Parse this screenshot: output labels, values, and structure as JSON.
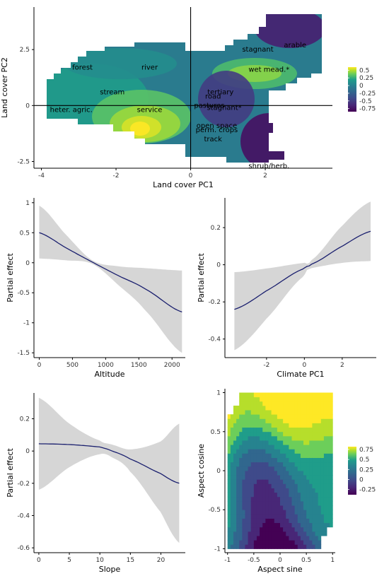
{
  "palette": [
    "#440154",
    "#482777",
    "#3f4a8a",
    "#31678e",
    "#26838f",
    "#1f9d8a",
    "#6cce5a",
    "#b6de2b",
    "#fee825"
  ],
  "band_color": "#d6d6d6",
  "line_color": "#1a1f6e",
  "chart_data": [
    {
      "id": "landcover",
      "type": "heatmap",
      "xlabel": "Land cover PC1",
      "ylabel": "Land cover PC2",
      "xlim": [
        -4.2,
        3.8
      ],
      "ylim": [
        -2.8,
        4.4
      ],
      "xticks": [
        -4,
        -2,
        0,
        2
      ],
      "xtick_labels": [
        "-4",
        "-2",
        "0",
        "2"
      ],
      "yticks": [
        -2.5,
        0,
        2.5
      ],
      "ytick_labels": [
        "-2.5",
        "0",
        "2.5"
      ],
      "reference_lines": {
        "x": 0,
        "y": 0
      },
      "legend": {
        "ticks": [
          0.5,
          0.25,
          0,
          -0.25,
          -0.5,
          -0.75
        ],
        "labels": [
          "0.5",
          "0.25",
          "0",
          "-0.25",
          "-0.5",
          "-0.75"
        ],
        "range": [
          -0.85,
          0.6
        ]
      },
      "categories": [
        {
          "label": "arable",
          "x": 2.8,
          "y": 2.7
        },
        {
          "label": "stagnant",
          "x": 1.8,
          "y": 2.5
        },
        {
          "label": "wet mead.*",
          "x": 2.1,
          "y": 1.6
        },
        {
          "label": "forest",
          "x": -2.9,
          "y": 1.7
        },
        {
          "label": "river",
          "x": -1.1,
          "y": 1.7
        },
        {
          "label": "stream",
          "x": -2.1,
          "y": 0.6
        },
        {
          "label": "tertiary",
          "x": 0.8,
          "y": 0.6
        },
        {
          "label": "road",
          "x": 0.6,
          "y": 0.4
        },
        {
          "label": "pastures",
          "x": 0.5,
          "y": 0
        },
        {
          "label": "stagnant*",
          "x": 0.9,
          "y": -0.1
        },
        {
          "label": "heter. agric.",
          "x": -3.2,
          "y": -0.2
        },
        {
          "label": "service",
          "x": -1.1,
          "y": -0.2
        },
        {
          "label": "open space",
          "x": 0.7,
          "y": -0.9
        },
        {
          "label": "perm. crops",
          "x": 0.7,
          "y": -1.1
        },
        {
          "label": "track",
          "x": 0.6,
          "y": -1.5
        },
        {
          "label": "shrub/herb.",
          "x": 2.1,
          "y": -2.7
        }
      ]
    },
    {
      "id": "altitude",
      "type": "line",
      "xlabel": "Altitude",
      "ylabel": "Partial effect",
      "xlim": [
        -80,
        2200
      ],
      "ylim": [
        -1.58,
        1.08
      ],
      "xticks": [
        0,
        500,
        1000,
        1500,
        2000
      ],
      "xtick_labels": [
        "0",
        "500",
        "1000",
        "1500",
        "2000"
      ],
      "yticks": [
        1,
        0.5,
        0,
        -0.5,
        -1,
        -1.5
      ],
      "ytick_labels": [
        "1",
        "0.5",
        "0",
        "-0.5",
        "-1",
        "-1.5"
      ],
      "x": [
        0,
        400,
        800,
        1200,
        1600,
        2150
      ],
      "y": [
        0.5,
        0.25,
        0.01,
        -0.22,
        -0.44,
        -0.82
      ],
      "lower": [
        0.07,
        0.04,
        -0.02,
        -0.38,
        -0.8,
        -1.5
      ],
      "upper": [
        0.95,
        0.47,
        0.04,
        -0.06,
        -0.09,
        -0.13
      ]
    },
    {
      "id": "climate",
      "type": "line",
      "xlabel": "Climate PC1",
      "ylabel": "Partial effect",
      "xlim": [
        -4.2,
        3.8
      ],
      "ylim": [
        -0.5,
        0.36
      ],
      "xticks": [
        -2,
        0,
        2
      ],
      "xtick_labels": [
        "-2",
        "0",
        "2"
      ],
      "yticks": [
        0.2,
        0,
        -0.2,
        -0.4
      ],
      "ytick_labels": [
        "0.2",
        "0",
        "-0.2",
        "-0.4"
      ],
      "x": [
        -3.7,
        -2,
        0,
        0.3,
        2,
        3.5
      ],
      "y": [
        -0.24,
        -0.14,
        -0.02,
        0,
        0.1,
        0.18
      ],
      "lower": [
        -0.46,
        -0.29,
        -0.06,
        -0.02,
        0.01,
        0.02
      ],
      "upper": [
        -0.04,
        -0.02,
        0.01,
        0.02,
        0.21,
        0.34
      ]
    },
    {
      "id": "slope",
      "type": "line",
      "xlabel": "Slope",
      "ylabel": "Partial effect",
      "xlim": [
        -0.8,
        24
      ],
      "ylim": [
        -0.63,
        0.36
      ],
      "xticks": [
        0,
        5,
        10,
        15,
        20
      ],
      "xtick_labels": [
        "0",
        "5",
        "10",
        "15",
        "20"
      ],
      "yticks": [
        0.2,
        0,
        -0.2,
        -0.4,
        -0.6
      ],
      "ytick_labels": [
        "0.2",
        "0",
        "-0.2",
        "-0.4",
        "-0.6"
      ],
      "x": [
        0,
        5,
        10,
        12,
        15,
        20,
        23
      ],
      "y": [
        0.045,
        0.04,
        0.025,
        0.0,
        -0.05,
        -0.14,
        -0.2
      ],
      "lower": [
        -0.24,
        -0.1,
        -0.02,
        -0.04,
        -0.13,
        -0.38,
        -0.57
      ],
      "upper": [
        0.33,
        0.17,
        0.065,
        0.04,
        0.01,
        0.06,
        0.17
      ]
    },
    {
      "id": "aspect",
      "type": "heatmap",
      "xlabel": "Aspect sine",
      "ylabel": "Aspect cosine",
      "xlim": [
        -1.05,
        1.05
      ],
      "ylim": [
        -1.05,
        1.05
      ],
      "xticks": [
        -1,
        -0.5,
        0,
        0.5,
        1
      ],
      "xtick_labels": [
        "-1",
        "-0.5",
        "0",
        "0.5",
        "1"
      ],
      "yticks": [
        1,
        0.5,
        0,
        -0.5,
        -1
      ],
      "ytick_labels": [
        "1",
        "0.5",
        "0",
        "-0.5",
        "-1"
      ],
      "legend": {
        "ticks": [
          0.75,
          0.5,
          0.25,
          0,
          -0.25
        ],
        "labels": [
          "0.75",
          "0.5",
          "0.25",
          "0",
          "-0.25"
        ],
        "range": [
          -0.38,
          0.82
        ]
      }
    }
  ]
}
